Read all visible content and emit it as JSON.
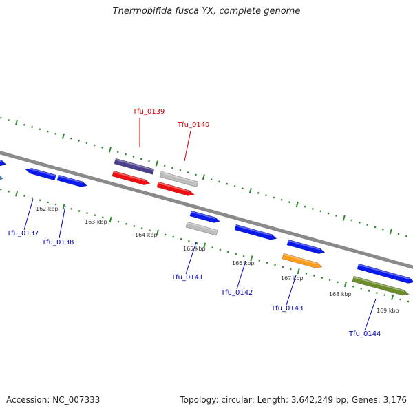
{
  "title": "Thermobifida fusca YX, complete genome",
  "footer": {
    "accession": "Accession: NC_007333",
    "summary": "Topology: circular; Length: 3,642,249 bp; Genes: 3,176"
  },
  "colors": {
    "backbone": "#8a8a8a",
    "tick": "#2e8b2e",
    "blue": "#0a1aee",
    "steelblue": "#4a86c4",
    "purple": "#4d3f8c",
    "red": "#ee1010",
    "gray": "#bcbcbc",
    "orange": "#ff9a1a",
    "olive": "#6b8c2a",
    "label_red": "#cc0000",
    "label_blue": "#0000aa"
  },
  "scale_labels": [
    "162 kbp",
    "163 kbp",
    "164 kbp",
    "165 kbp",
    "166 kbp",
    "167 kbp",
    "168 kbp",
    "169 kbp"
  ],
  "gene_labels": [
    {
      "name": "Tfu_0137",
      "color": "label_blue"
    },
    {
      "name": "Tfu_0138",
      "color": "label_blue"
    },
    {
      "name": "Tfu_0139",
      "color": "label_red"
    },
    {
      "name": "Tfu_0140",
      "color": "label_red"
    },
    {
      "name": "Tfu_0141",
      "color": "label_blue"
    },
    {
      "name": "Tfu_0142",
      "color": "label_blue"
    },
    {
      "name": "Tfu_0143",
      "color": "label_blue"
    },
    {
      "name": "Tfu_0144",
      "color": "label_blue"
    }
  ],
  "features": [
    {
      "color": "blue",
      "direction": "forward"
    },
    {
      "color": "steelblue",
      "direction": "forward"
    },
    {
      "color": "blue",
      "direction": "reverse"
    },
    {
      "color": "blue",
      "direction": "forward"
    },
    {
      "color": "purple",
      "direction": "none"
    },
    {
      "color": "red",
      "direction": "forward"
    },
    {
      "color": "gray",
      "direction": "none"
    },
    {
      "color": "red",
      "direction": "forward"
    },
    {
      "color": "blue",
      "direction": "forward"
    },
    {
      "color": "gray",
      "direction": "none"
    },
    {
      "color": "blue",
      "direction": "forward"
    },
    {
      "color": "blue",
      "direction": "forward"
    },
    {
      "color": "orange",
      "direction": "forward"
    },
    {
      "color": "blue",
      "direction": "forward"
    },
    {
      "color": "olive",
      "direction": "forward"
    }
  ]
}
